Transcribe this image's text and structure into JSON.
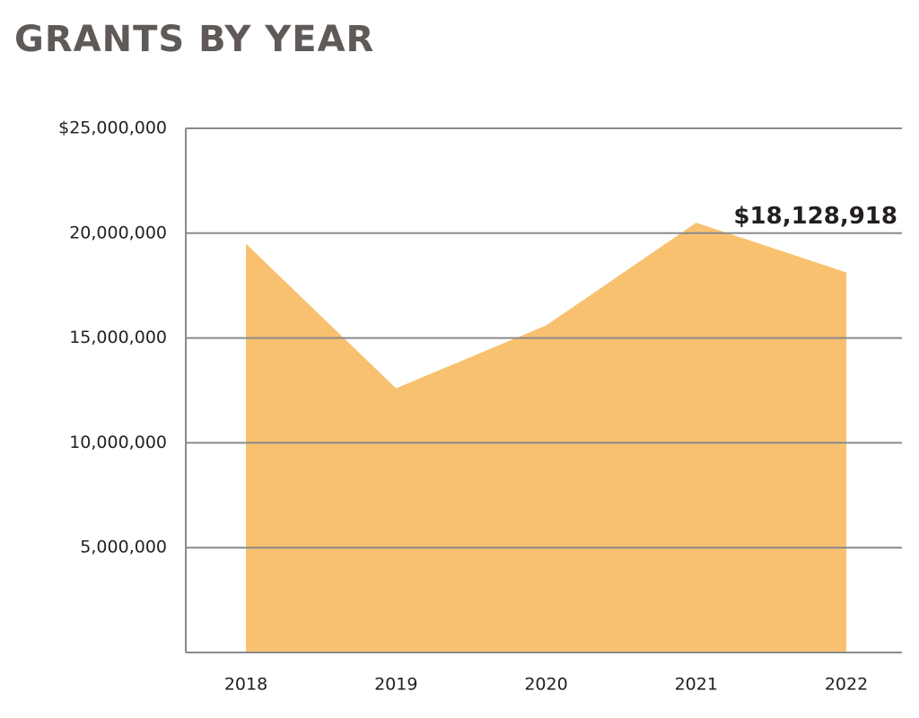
{
  "chart_data": {
    "type": "area",
    "title": "GRANTS BY YEAR",
    "categories": [
      "2018",
      "2019",
      "2020",
      "2021",
      "2022"
    ],
    "values": [
      19500000,
      12600000,
      15600000,
      20500000,
      18128918
    ],
    "value_labels": [
      null,
      null,
      null,
      null,
      "$18,128,918"
    ],
    "color": "#f8c170",
    "ylim": [
      0,
      25000000
    ],
    "yticks": [
      {
        "value": 5000000,
        "label": "5,000,000"
      },
      {
        "value": 10000000,
        "label": "10,000,000"
      },
      {
        "value": 15000000,
        "label": "15,000,000"
      },
      {
        "value": 20000000,
        "label": "20,000,000"
      },
      {
        "value": 25000000,
        "label": "$25,000,000"
      }
    ],
    "grid": true
  }
}
